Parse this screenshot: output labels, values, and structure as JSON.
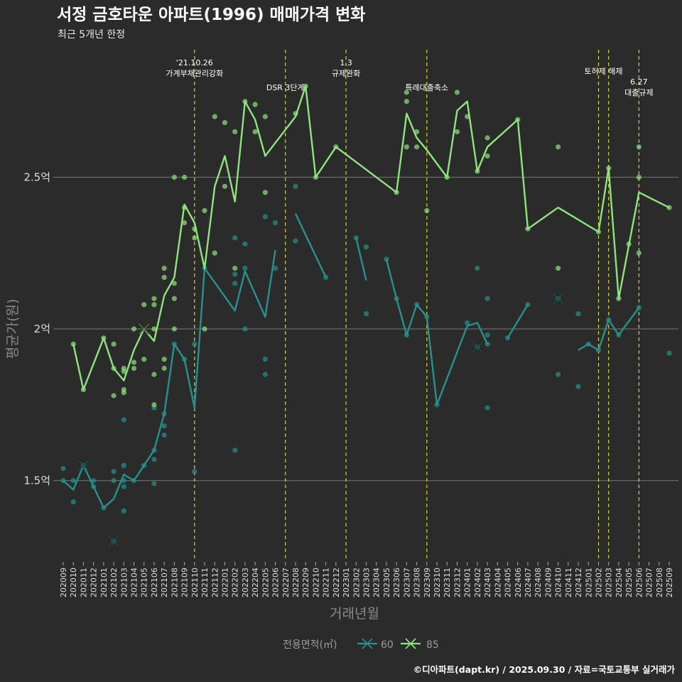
{
  "header": {
    "title": "서정 금호타운 아파트(1996) 매매가격 변화",
    "subtitle": "최근 5개년 한정"
  },
  "footer": "©디아파트(dapt.kr) / 2025.09.30 / 자료=국토교통부 실거래가",
  "chart_data": {
    "type": "line",
    "title": "서정 금호타운 아파트(1996) 매매가격 변화",
    "subtitle": "최근 5개년 한정",
    "xlabel": "거래년월",
    "ylabel": "평균가(원)",
    "ylim_eok": [
      1.22,
      2.96
    ],
    "yticks": [
      {
        "value": 1.5,
        "label": "1.5억"
      },
      {
        "value": 2.0,
        "label": "2억"
      },
      {
        "value": 2.5,
        "label": "2.5억"
      }
    ],
    "grid": "horizontal-major",
    "categories": [
      "202009",
      "202010",
      "202011",
      "202012",
      "202101",
      "202102",
      "202103",
      "202104",
      "202105",
      "202106",
      "202107",
      "202108",
      "202109",
      "202110",
      "202111",
      "202112",
      "202201",
      "202202",
      "202203",
      "202204",
      "202205",
      "202206",
      "202207",
      "202208",
      "202209",
      "202210",
      "202211",
      "202212",
      "202301",
      "202302",
      "202303",
      "202304",
      "202305",
      "202306",
      "202307",
      "202308",
      "202309",
      "202310",
      "202311",
      "202312",
      "202401",
      "202402",
      "202403",
      "202404",
      "202405",
      "202406",
      "202407",
      "202408",
      "202409",
      "202410",
      "202411",
      "202412",
      "202501",
      "202502",
      "202503",
      "202504",
      "202505",
      "202506",
      "202507",
      "202508",
      "202509"
    ],
    "legend": {
      "title": "전용면적(㎡)",
      "placement": "bottom"
    },
    "colors": {
      "60": "#26918d",
      "85": "#8ee47d",
      "event": "#d4d42a",
      "grid": "#6a6a6a",
      "background": "#2b2b2b"
    },
    "events": [
      {
        "month": "202110",
        "lines": [
          "'21.10.26",
          "가계부채관리강화"
        ]
      },
      {
        "month": "202207",
        "lines": [
          "DSR 3단계"
        ]
      },
      {
        "month": "202301",
        "lines": [
          "1.3",
          "규제완화"
        ]
      },
      {
        "month": "202309",
        "lines": [
          "특례대출축소"
        ]
      },
      {
        "month": "202502",
        "lines": [
          "토허제 해제"
        ]
      },
      {
        "month": "202503",
        "lines": []
      },
      {
        "month": "202506",
        "lines": [
          "6.27",
          "대출규제"
        ]
      }
    ],
    "series": [
      {
        "name": "60",
        "line_segments": [
          [
            [
              "202009",
              1.5
            ],
            [
              "202010",
              1.47
            ],
            [
              "202011",
              1.55
            ],
            [
              "202012",
              1.48
            ],
            [
              "202101",
              1.41
            ],
            [
              "202102",
              1.44
            ],
            [
              "202103",
              1.52
            ],
            [
              "202104",
              1.5
            ],
            [
              "202105",
              1.55
            ],
            [
              "202106",
              1.6
            ],
            [
              "202107",
              1.72
            ],
            [
              "202108",
              1.95
            ],
            [
              "202109",
              1.9
            ],
            [
              "202110",
              1.74
            ],
            [
              "202111",
              2.2
            ],
            [
              "202202",
              2.06
            ],
            [
              "202203",
              2.19
            ],
            [
              "202205",
              2.04
            ],
            [
              "202206",
              2.26
            ]
          ],
          [
            [
              "202208",
              2.38
            ],
            [
              "202211",
              2.17
            ]
          ],
          [
            [
              "202302",
              2.3
            ],
            [
              "202303",
              2.16
            ]
          ],
          [
            [
              "202305",
              2.23
            ],
            [
              "202306",
              2.1
            ],
            [
              "202307",
              1.98
            ],
            [
              "202308",
              2.08
            ],
            [
              "202309",
              2.04
            ],
            [
              "202310",
              1.75
            ],
            [
              "202401",
              2.01
            ],
            [
              "202402",
              2.02
            ],
            [
              "202403",
              1.95
            ]
          ],
          [
            [
              "202405",
              1.97
            ],
            [
              "202407",
              2.08
            ]
          ],
          [
            [
              "202412",
              1.93
            ],
            [
              "202501",
              1.95
            ],
            [
              "202502",
              1.93
            ],
            [
              "202503",
              2.03
            ],
            [
              "202504",
              1.98
            ],
            [
              "202506",
              2.07
            ]
          ]
        ],
        "points": [
          [
            "202009",
            1.54
          ],
          [
            "202009",
            1.5
          ],
          [
            "202010",
            1.5
          ],
          [
            "202010",
            1.43
          ],
          [
            "202011",
            1.55
          ],
          [
            "202012",
            1.5
          ],
          [
            "202012",
            1.48
          ],
          [
            "202101",
            1.41
          ],
          [
            "202102",
            1.53
          ],
          [
            "202102",
            1.5
          ],
          [
            "202102",
            1.3
          ],
          [
            "202103",
            1.7
          ],
          [
            "202103",
            1.55
          ],
          [
            "202103",
            1.5
          ],
          [
            "202103",
            1.48
          ],
          [
            "202103",
            1.4
          ],
          [
            "202104",
            1.5
          ],
          [
            "202105",
            1.55
          ],
          [
            "202106",
            1.74
          ],
          [
            "202106",
            1.6
          ],
          [
            "202106",
            1.57
          ],
          [
            "202106",
            1.49
          ],
          [
            "202107",
            1.72
          ],
          [
            "202107",
            1.68
          ],
          [
            "202107",
            1.65
          ],
          [
            "202108",
            1.95
          ],
          [
            "202109",
            1.9
          ],
          [
            "202110",
            1.95
          ],
          [
            "202110",
            1.53
          ],
          [
            "202111",
            2.2
          ],
          [
            "202202",
            2.3
          ],
          [
            "202202",
            2.18
          ],
          [
            "202202",
            2.15
          ],
          [
            "202202",
            1.6
          ],
          [
            "202203",
            2.28
          ],
          [
            "202203",
            2.2
          ],
          [
            "202203",
            2.0
          ],
          [
            "202205",
            2.37
          ],
          [
            "202205",
            1.9
          ],
          [
            "202205",
            1.85
          ],
          [
            "202206",
            2.35
          ],
          [
            "202206",
            2.2
          ],
          [
            "202208",
            2.47
          ],
          [
            "202208",
            2.29
          ],
          [
            "202211",
            2.17
          ],
          [
            "202302",
            2.3
          ],
          [
            "202303",
            2.27
          ],
          [
            "202303",
            2.05
          ],
          [
            "202305",
            2.23
          ],
          [
            "202306",
            2.1
          ],
          [
            "202307",
            1.98
          ],
          [
            "202308",
            2.08
          ],
          [
            "202309",
            2.04
          ],
          [
            "202310",
            1.75
          ],
          [
            "202401",
            2.02
          ],
          [
            "202402",
            2.2
          ],
          [
            "202402",
            1.94
          ],
          [
            "202403",
            2.1
          ],
          [
            "202403",
            1.98
          ],
          [
            "202403",
            1.95
          ],
          [
            "202403",
            1.74
          ],
          [
            "202405",
            1.97
          ],
          [
            "202407",
            2.08
          ],
          [
            "202410",
            2.1
          ],
          [
            "202410",
            1.85
          ],
          [
            "202412",
            2.05
          ],
          [
            "202412",
            1.81
          ],
          [
            "202501",
            1.95
          ],
          [
            "202502",
            1.93
          ],
          [
            "202503",
            2.03
          ],
          [
            "202504",
            1.98
          ],
          [
            "202506",
            2.07
          ],
          [
            "202509",
            1.92
          ]
        ],
        "x_markers": [
          [
            "202011",
            1.55
          ],
          [
            "202102",
            1.3
          ],
          [
            "202402",
            1.94
          ],
          [
            "202410",
            2.1
          ]
        ]
      },
      {
        "name": "85",
        "line_segments": [
          [
            [
              "202010",
              1.95
            ],
            [
              "202011",
              1.8
            ],
            [
              "202101",
              1.97
            ],
            [
              "202102",
              1.87
            ],
            [
              "202103",
              1.83
            ],
            [
              "202104",
              1.93
            ],
            [
              "202105",
              2.0
            ],
            [
              "202106",
              1.96
            ],
            [
              "202107",
              2.11
            ],
            [
              "202108",
              2.17
            ],
            [
              "202109",
              2.41
            ],
            [
              "202110",
              2.35
            ],
            [
              "202111",
              2.2
            ],
            [
              "202112",
              2.47
            ],
            [
              "202201",
              2.57
            ],
            [
              "202202",
              2.42
            ],
            [
              "202203",
              2.75
            ],
            [
              "202204",
              2.69
            ],
            [
              "202205",
              2.57
            ],
            [
              "202208",
              2.7
            ],
            [
              "202209",
              2.8
            ],
            [
              "202210",
              2.5
            ],
            [
              "202212",
              2.6
            ],
            [
              "202306",
              2.45
            ],
            [
              "202307",
              2.71
            ],
            [
              "202308",
              2.63
            ],
            [
              "202309",
              2.59
            ],
            [
              "202311",
              2.5
            ],
            [
              "202312",
              2.72
            ],
            [
              "202401",
              2.75
            ],
            [
              "202402",
              2.52
            ],
            [
              "202403",
              2.6
            ],
            [
              "202406",
              2.69
            ],
            [
              "202407",
              2.33
            ],
            [
              "202410",
              2.4
            ],
            [
              "202502",
              2.32
            ],
            [
              "202503",
              2.53
            ],
            [
              "202504",
              2.1
            ],
            [
              "202506",
              2.45
            ],
            [
              "202509",
              2.4
            ]
          ]
        ],
        "points": [
          [
            "202010",
            1.95
          ],
          [
            "202011",
            1.8
          ],
          [
            "202101",
            1.97
          ],
          [
            "202102",
            1.95
          ],
          [
            "202102",
            1.87
          ],
          [
            "202102",
            1.78
          ],
          [
            "202103",
            1.87
          ],
          [
            "202103",
            1.86
          ],
          [
            "202103",
            1.8
          ],
          [
            "202103",
            1.79
          ],
          [
            "202104",
            2.0
          ],
          [
            "202104",
            1.89
          ],
          [
            "202104",
            1.87
          ],
          [
            "202105",
            2.08
          ],
          [
            "202105",
            1.9
          ],
          [
            "202106",
            2.1
          ],
          [
            "202106",
            2.08
          ],
          [
            "202106",
            2.0
          ],
          [
            "202106",
            1.85
          ],
          [
            "202106",
            1.75
          ],
          [
            "202107",
            2.2
          ],
          [
            "202107",
            2.17
          ],
          [
            "202107",
            1.9
          ],
          [
            "202107",
            1.87
          ],
          [
            "202108",
            2.5
          ],
          [
            "202108",
            2.15
          ],
          [
            "202108",
            2.1
          ],
          [
            "202108",
            2.0
          ],
          [
            "202109",
            2.5
          ],
          [
            "202109",
            2.4
          ],
          [
            "202109",
            2.35
          ],
          [
            "202110",
            2.33
          ],
          [
            "202110",
            2.3
          ],
          [
            "202111",
            2.39
          ],
          [
            "202111",
            2.0
          ],
          [
            "202112",
            2.7
          ],
          [
            "202112",
            2.25
          ],
          [
            "202201",
            2.68
          ],
          [
            "202201",
            2.47
          ],
          [
            "202202",
            2.65
          ],
          [
            "202202",
            2.2
          ],
          [
            "202203",
            2.75
          ],
          [
            "202204",
            2.74
          ],
          [
            "202204",
            2.65
          ],
          [
            "202205",
            2.7
          ],
          [
            "202205",
            2.45
          ],
          [
            "202208",
            2.71
          ],
          [
            "202209",
            2.8
          ],
          [
            "202210",
            2.5
          ],
          [
            "202212",
            2.6
          ],
          [
            "202306",
            2.45
          ],
          [
            "202307",
            2.78
          ],
          [
            "202307",
            2.75
          ],
          [
            "202307",
            2.6
          ],
          [
            "202308",
            2.65
          ],
          [
            "202308",
            2.6
          ],
          [
            "202309",
            2.39
          ],
          [
            "202311",
            2.5
          ],
          [
            "202312",
            2.78
          ],
          [
            "202312",
            2.65
          ],
          [
            "202401",
            2.7
          ],
          [
            "202402",
            2.52
          ],
          [
            "202403",
            2.63
          ],
          [
            "202403",
            2.57
          ],
          [
            "202406",
            2.69
          ],
          [
            "202407",
            2.33
          ],
          [
            "202410",
            2.6
          ],
          [
            "202410",
            2.2
          ],
          [
            "202502",
            2.32
          ],
          [
            "202503",
            2.53
          ],
          [
            "202504",
            2.1
          ],
          [
            "202505",
            2.28
          ],
          [
            "202506",
            2.6
          ],
          [
            "202506",
            2.5
          ],
          [
            "202506",
            2.25
          ],
          [
            "202509",
            2.4
          ]
        ],
        "x_markers": [
          [
            "202105",
            2.0
          ]
        ]
      }
    ]
  }
}
